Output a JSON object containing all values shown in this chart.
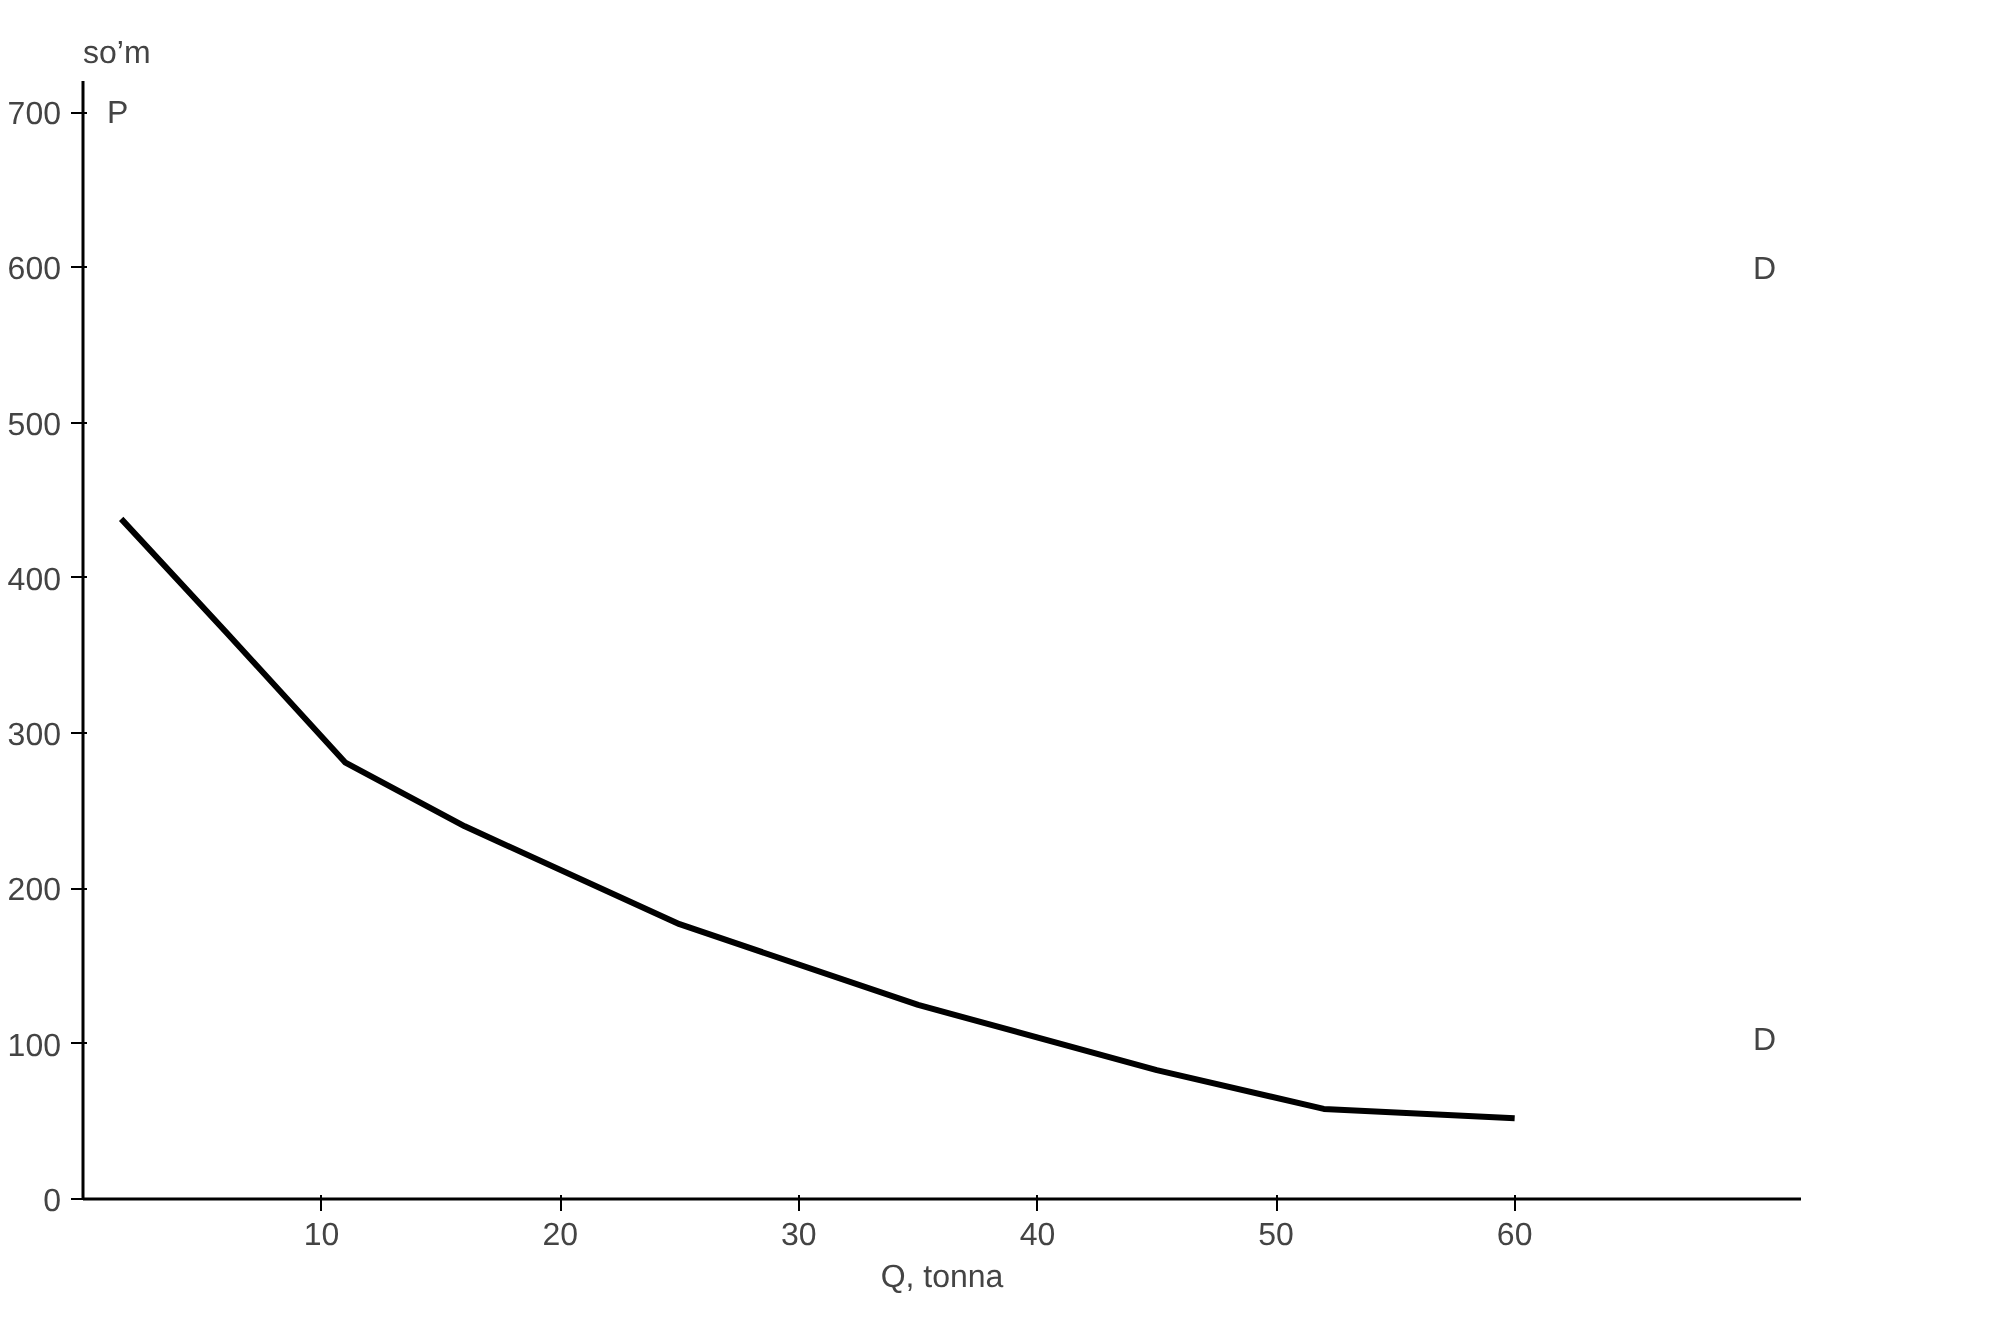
{
  "chart_data": {
    "type": "line",
    "xlabel": "Q, tonna",
    "ylabel": "so’m",
    "x": [
      1.6,
      6,
      11,
      16,
      25,
      35,
      45,
      52,
      60
    ],
    "series": [
      {
        "color": "#000000",
        "values": [
          438,
          365,
          281,
          240,
          177,
          125,
          83,
          58,
          52
        ]
      }
    ],
    "xlim": [
      0,
      72
    ],
    "xticks": [
      10,
      20,
      30,
      40,
      50,
      60
    ],
    "ylim": [
      0,
      720
    ],
    "yticks": [
      0,
      100,
      200,
      300,
      400,
      500,
      600,
      700
    ],
    "grid": false,
    "marker": "none",
    "line_style": "solid",
    "annotations": [
      "P",
      "D",
      "D"
    ]
  }
}
